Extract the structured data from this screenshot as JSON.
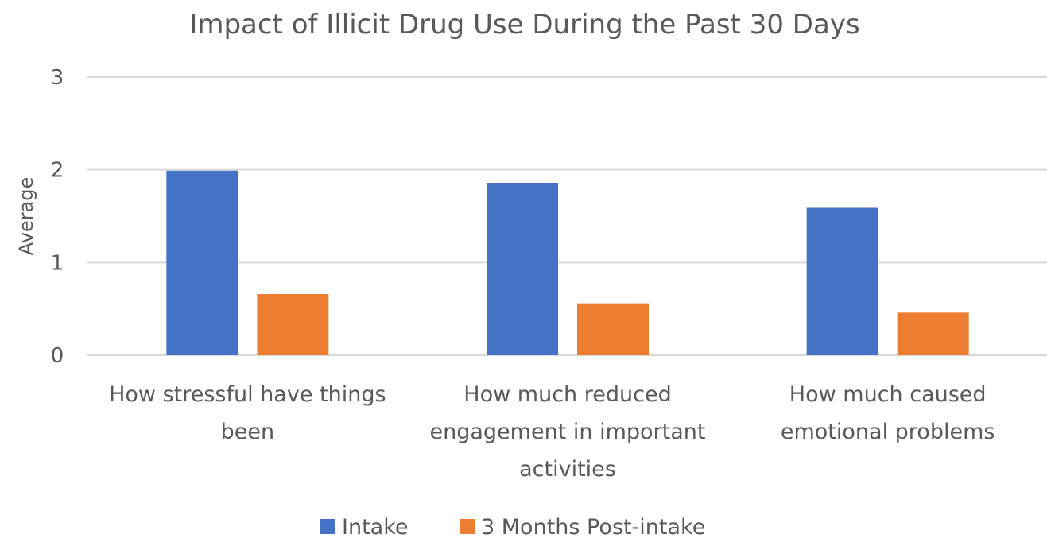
{
  "chart_data": {
    "type": "bar",
    "title": "Impact of Illicit Drug Use During the Past 30 Days",
    "ylabel": "Average",
    "xlabel": "",
    "ylim": [
      0,
      3
    ],
    "yticks": [
      0,
      1,
      2,
      3
    ],
    "grid": true,
    "legend_position": "bottom",
    "categories": [
      [
        "How stressful have things",
        "been"
      ],
      [
        "How much reduced",
        "engagement in important",
        "activities"
      ],
      [
        "How much caused",
        "emotional problems"
      ]
    ],
    "series": [
      {
        "name": "Intake",
        "color": "#4472c4",
        "values": [
          1.99,
          1.86,
          1.59
        ]
      },
      {
        "name": "3 Months Post-intake",
        "color": "#ed7d31",
        "values": [
          0.66,
          0.56,
          0.46
        ]
      }
    ]
  }
}
